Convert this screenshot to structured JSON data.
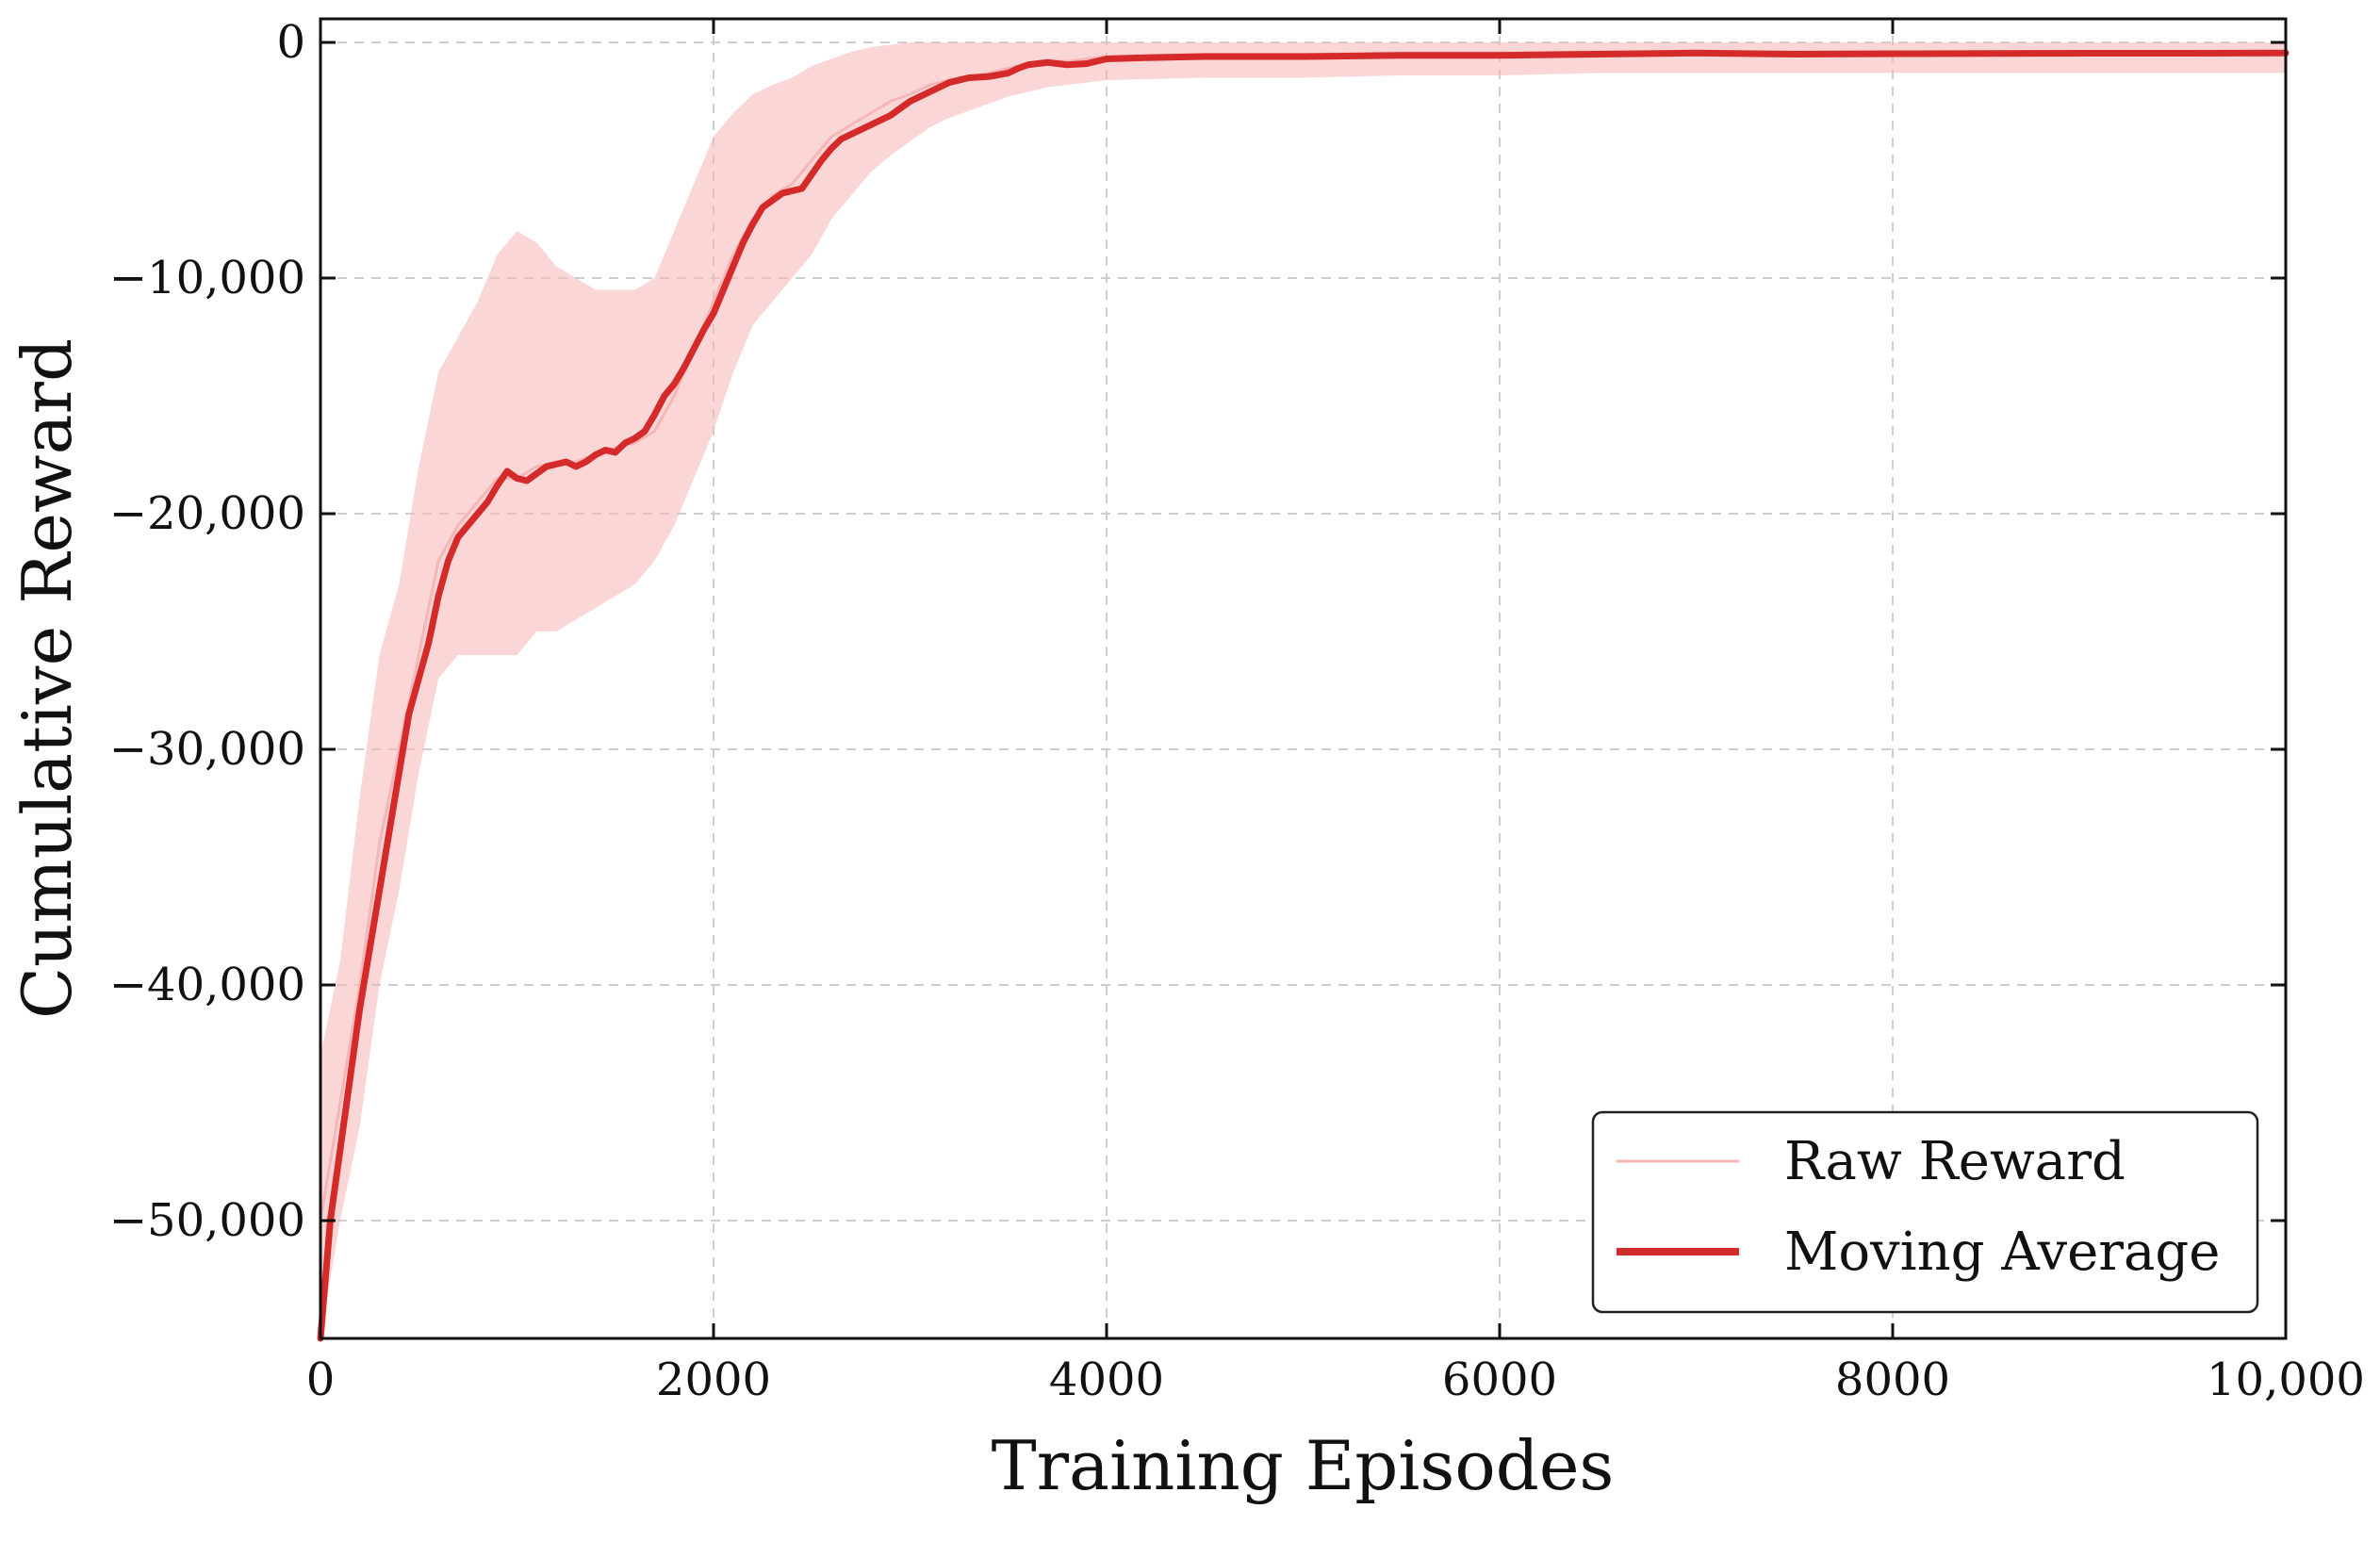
{
  "chart_data": {
    "type": "line",
    "xlabel": "Training Episodes",
    "ylabel": "Cumulative Reward",
    "xlim": [
      0,
      10000
    ],
    "ylim": [
      -55000,
      1000
    ],
    "xticks": [
      0,
      2000,
      4000,
      6000,
      8000,
      10000
    ],
    "xtick_labels": [
      "0",
      "2000",
      "4000",
      "6000",
      "8000",
      "10,000"
    ],
    "yticks": [
      0,
      -10000,
      -20000,
      -30000,
      -40000,
      -50000
    ],
    "ytick_labels": [
      "0",
      "−10,000",
      "−20,000",
      "−30,000",
      "−40,000",
      "−50,000"
    ],
    "grid": true,
    "legend_position": "bottom-right",
    "series": [
      {
        "name": "Raw Reward",
        "color": "#f7b5b5",
        "x": [
          0,
          100,
          200,
          300,
          400,
          500,
          600,
          700,
          800,
          900,
          1000,
          1100,
          1200,
          1300,
          1400,
          1500,
          1600,
          1700,
          1800,
          1900,
          2000,
          2100,
          2200,
          2300,
          2400,
          2500,
          2600,
          2700,
          2800,
          2900,
          3000,
          3100,
          3200,
          3300,
          3400,
          3500,
          3600,
          3700,
          3800,
          3900,
          4000,
          4500,
          5000,
          5500,
          6000,
          6500,
          7000,
          7500,
          8000,
          8500,
          9000,
          9500,
          10000
        ],
        "y": [
          -50000,
          -45000,
          -40000,
          -34000,
          -30000,
          -26000,
          -22000,
          -20500,
          -19500,
          -18500,
          -18500,
          -18000,
          -17800,
          -17800,
          -17500,
          -17200,
          -17000,
          -16500,
          -15000,
          -13000,
          -11000,
          -9000,
          -7500,
          -6500,
          -6000,
          -5000,
          -4000,
          -3500,
          -3000,
          -2500,
          -2200,
          -1800,
          -1600,
          -1500,
          -1300,
          -1100,
          -900,
          -800,
          -800,
          -700,
          -600,
          -500,
          -500,
          -450,
          -450,
          -400,
          -400,
          -400,
          -400,
          -400,
          -400,
          -400,
          -400
        ],
        "band_low": [
          -55000,
          -50000,
          -46000,
          -40000,
          -36000,
          -31000,
          -27000,
          -26000,
          -26000,
          -26000,
          -26000,
          -25000,
          -25000,
          -24500,
          -24000,
          -23500,
          -23000,
          -22000,
          -20500,
          -18500,
          -16500,
          -14000,
          -12000,
          -11000,
          -10000,
          -9000,
          -7500,
          -6500,
          -5500,
          -4800,
          -4200,
          -3600,
          -3200,
          -2900,
          -2600,
          -2300,
          -2100,
          -1900,
          -1800,
          -1700,
          -1600,
          -1500,
          -1500,
          -1400,
          -1400,
          -1300,
          -1300,
          -1300,
          -1300,
          -1300,
          -1300,
          -1300,
          -1300
        ],
        "band_high": [
          -43000,
          -39000,
          -32000,
          -26000,
          -23000,
          -18000,
          -14000,
          -12500,
          -11000,
          -9000,
          -8000,
          -8500,
          -9500,
          -10000,
          -10500,
          -10500,
          -10500,
          -10000,
          -8000,
          -6000,
          -4000,
          -3000,
          -2200,
          -1800,
          -1500,
          -1000,
          -700,
          -400,
          -200,
          -100,
          0,
          0,
          0,
          0,
          0,
          0,
          0,
          0,
          0,
          0,
          0,
          0,
          0,
          0,
          0,
          0,
          0,
          0,
          0,
          0,
          0,
          0,
          0
        ]
      },
      {
        "name": "Moving Average",
        "color": "#d42a2a",
        "x": [
          0,
          50,
          100,
          150,
          200,
          250,
          300,
          350,
          400,
          450,
          500,
          550,
          600,
          650,
          700,
          750,
          800,
          850,
          900,
          950,
          1000,
          1050,
          1100,
          1150,
          1200,
          1250,
          1300,
          1350,
          1400,
          1450,
          1500,
          1550,
          1600,
          1650,
          1700,
          1750,
          1800,
          1850,
          1900,
          1950,
          2000,
          2050,
          2100,
          2150,
          2200,
          2250,
          2300,
          2350,
          2400,
          2450,
          2500,
          2550,
          2600,
          2650,
          2700,
          2750,
          2800,
          2850,
          2900,
          2950,
          3000,
          3050,
          3100,
          3150,
          3200,
          3300,
          3400,
          3500,
          3550,
          3600,
          3650,
          3700,
          3800,
          3900,
          4000,
          4200,
          4500,
          5000,
          5500,
          6000,
          6500,
          7000,
          7500,
          8000,
          8500,
          9000,
          9500,
          10000
        ],
        "y": [
          -55000,
          -50000,
          -47000,
          -44000,
          -41000,
          -38500,
          -36000,
          -33500,
          -31000,
          -28500,
          -27000,
          -25500,
          -23500,
          -22000,
          -21000,
          -20500,
          -20000,
          -19500,
          -18800,
          -18200,
          -18500,
          -18600,
          -18300,
          -18000,
          -17900,
          -17800,
          -18000,
          -17800,
          -17500,
          -17300,
          -17400,
          -17000,
          -16800,
          -16500,
          -15800,
          -15000,
          -14500,
          -13800,
          -13000,
          -12200,
          -11500,
          -10500,
          -9500,
          -8500,
          -7700,
          -7000,
          -6700,
          -6400,
          -6300,
          -6200,
          -5600,
          -5000,
          -4500,
          -4100,
          -3900,
          -3700,
          -3500,
          -3300,
          -3100,
          -2800,
          -2500,
          -2300,
          -2100,
          -1900,
          -1700,
          -1500,
          -1450,
          -1300,
          -1100,
          -950,
          -900,
          -850,
          -950,
          -900,
          -700,
          -650,
          -600,
          -600,
          -550,
          -550,
          -500,
          -450,
          -500,
          -480,
          -470,
          -460,
          -460,
          -450
        ]
      }
    ]
  }
}
